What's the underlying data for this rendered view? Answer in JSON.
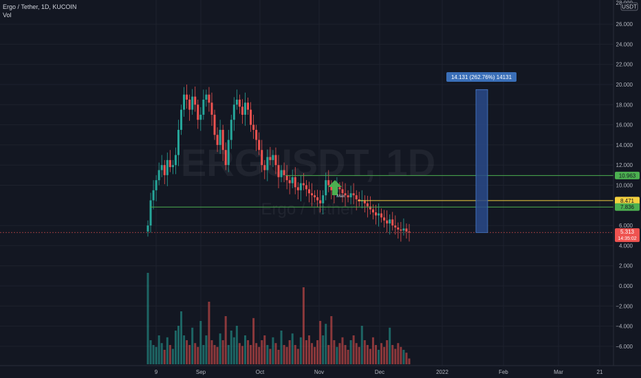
{
  "header": {
    "symbol_line": "Ergo / Tether, 1D, KUCOIN",
    "volume_label": "Vol"
  },
  "watermark": {
    "ticker": "ERGUSDT, 1D",
    "name": "Ergo / Tether"
  },
  "currency_badge": "USDT",
  "price_axis": {
    "top_partial": "28.000",
    "ticks": [
      "26.000",
      "24.000",
      "22.000",
      "20.000",
      "18.000",
      "16.000",
      "14.000",
      "12.000",
      "10.000",
      "6.000",
      "4.000",
      "2.000",
      "0.000",
      "−2.000",
      "−4.000",
      "−6.000"
    ]
  },
  "time_axis": {
    "labels": [
      "9",
      "Sep",
      "Oct",
      "Nov",
      "Dec",
      "2022",
      "Feb",
      "Mar",
      "21"
    ]
  },
  "price_tags": {
    "green_top": "10.963",
    "yellow": "8.471",
    "green_bottom": "7.836",
    "current_price": "5.313",
    "countdown": "14:35:02"
  },
  "measure": {
    "label": "14.131 (262.76%) 14131"
  },
  "annotation": {
    "text": "Max"
  },
  "colors": {
    "background": "#131722",
    "up": "#26a69a",
    "down": "#ef5350",
    "green_line": "#4caf50",
    "yellow_line": "#f4d03f",
    "measure_fill": "#2a4a8a",
    "measure_label": "#3a6fb8",
    "arrow": "#4caf50"
  },
  "chart_data": {
    "type": "candlestick",
    "title": "Ergo / Tether, 1D, KUCOIN",
    "ylim": [
      -7,
      28
    ],
    "price_levels": [
      10.963,
      8.471,
      7.836
    ],
    "current_price": 5.313,
    "close_series": [
      6.0,
      8.5,
      9.5,
      10.5,
      11.5,
      12.0,
      11.0,
      12.5,
      11.8,
      12.0,
      13.0,
      15.5,
      17.5,
      19.0,
      18.5,
      17.5,
      18.8,
      18.0,
      16.5,
      17.0,
      18.5,
      19.0,
      18.2,
      17.0,
      15.0,
      14.0,
      15.5,
      13.5,
      12.0,
      14.5,
      16.5,
      18.0,
      18.5,
      17.8,
      17.0,
      18.2,
      17.5,
      16.0,
      15.5,
      14.5,
      13.5,
      12.0,
      11.5,
      12.8,
      12.5,
      13.0,
      12.0,
      10.8,
      11.5,
      11.0,
      10.5,
      10.2,
      10.8,
      9.8,
      9.5,
      10.2,
      10.0,
      9.6,
      9.2,
      9.0,
      8.8,
      8.5,
      8.2,
      9.0,
      10.5,
      10.0,
      9.5,
      9.3,
      9.8,
      9.6,
      9.2,
      9.0,
      8.8,
      9.2,
      9.0,
      8.6,
      8.4,
      8.5,
      8.2,
      7.9,
      7.6,
      7.3,
      7.0,
      7.2,
      6.8,
      6.5,
      6.2,
      6.6,
      6.0,
      5.8,
      5.6,
      5.5,
      5.7,
      5.4,
      5.313
    ],
    "volume_series": [
      9.5,
      2.5,
      2.0,
      1.8,
      3.0,
      2.2,
      1.5,
      2.8,
      2.0,
      1.6,
      3.5,
      4.0,
      5.5,
      3.0,
      2.5,
      2.0,
      3.8,
      2.2,
      1.8,
      4.5,
      2.0,
      3.0,
      6.5,
      2.5,
      2.0,
      1.8,
      3.2,
      2.5,
      5.0,
      2.0,
      3.5,
      2.8,
      4.0,
      2.2,
      1.9,
      3.0,
      2.5,
      2.0,
      4.8,
      2.2,
      1.8,
      2.5,
      3.0,
      2.0,
      1.6,
      2.8,
      2.2,
      1.5,
      3.5,
      2.0,
      1.8,
      2.5,
      3.2,
      2.0,
      1.6,
      2.8,
      8.0,
      2.5,
      3.0,
      2.2,
      1.8,
      2.5,
      4.5,
      3.0,
      4.2,
      2.0,
      5.0,
      2.5,
      1.8,
      2.2,
      2.8,
      2.0,
      1.5,
      2.5,
      3.0,
      2.2,
      1.8,
      4.0,
      2.5,
      2.0,
      1.6,
      2.8,
      2.0,
      1.5,
      2.2,
      1.8,
      2.5,
      3.8,
      2.0,
      1.6,
      2.2,
      1.8,
      1.5,
      1.2,
      0.6
    ]
  }
}
